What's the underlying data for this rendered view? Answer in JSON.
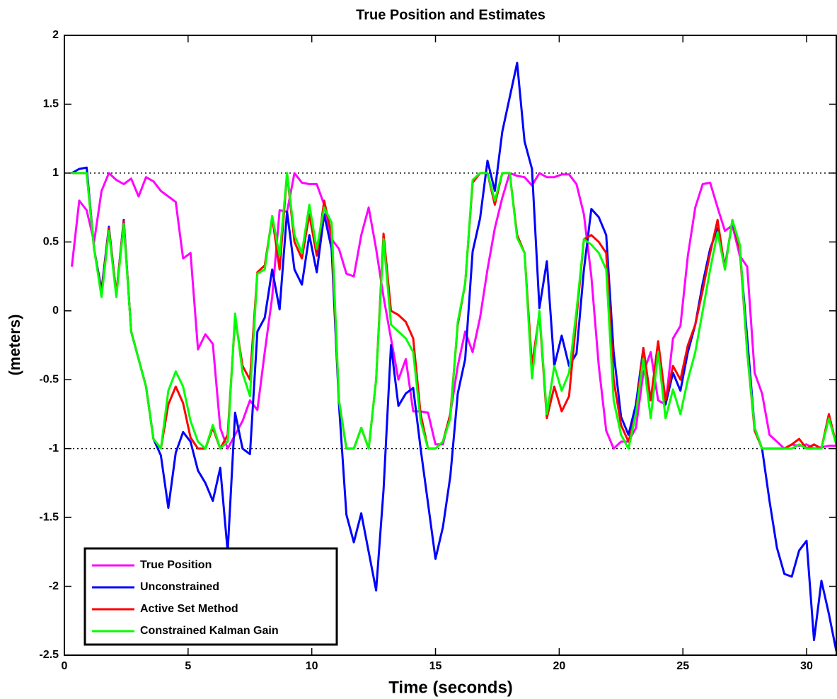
{
  "chart_data": {
    "type": "line",
    "title": "True Position and Estimates",
    "xlabel": "Time (seconds)",
    "ylabel": "(meters)",
    "x": [
      0.3,
      0.6,
      0.9,
      1.2,
      1.5,
      1.8,
      2.1,
      2.4,
      2.7,
      3,
      3.3,
      3.6,
      3.9,
      4.2,
      4.5,
      4.8,
      5.1,
      5.4,
      5.7,
      6,
      6.3,
      6.6,
      6.9,
      7.2,
      7.5,
      7.8,
      8.1,
      8.4,
      8.7,
      9,
      9.3,
      9.6,
      9.9,
      10.2,
      10.5,
      10.8,
      11.1,
      11.4,
      11.7,
      12,
      12.3,
      12.6,
      12.9,
      13.2,
      13.5,
      13.8,
      14.1,
      14.4,
      14.7,
      15,
      15.3,
      15.6,
      15.9,
      16.2,
      16.5,
      16.8,
      17.1,
      17.4,
      17.7,
      18,
      18.3,
      18.6,
      18.9,
      19.2,
      19.5,
      19.8,
      20.1,
      20.4,
      20.7,
      21,
      21.3,
      21.6,
      21.9,
      22.2,
      22.5,
      22.8,
      23.1,
      23.4,
      23.7,
      24,
      24.3,
      24.6,
      24.9,
      25.2,
      25.5,
      25.8,
      26.1,
      26.4,
      26.7,
      27,
      27.3,
      27.6,
      27.9,
      28.2,
      28.5,
      28.8,
      29.1,
      29.4,
      29.7,
      30,
      30.3,
      30.6,
      30.9,
      31.2
    ],
    "series": [
      {
        "name": "True Position",
        "color": "#ff00ff",
        "values": [
          0.32,
          0.8,
          0.73,
          0.5,
          0.87,
          1.0,
          0.95,
          0.92,
          0.96,
          0.83,
          0.97,
          0.94,
          0.87,
          0.83,
          0.79,
          0.38,
          0.42,
          -0.28,
          -0.17,
          -0.24,
          -0.85,
          -1.0,
          -0.9,
          -0.8,
          -0.65,
          -0.72,
          -0.3,
          0.1,
          0.73,
          0.72,
          1.0,
          0.93,
          0.92,
          0.92,
          0.77,
          0.52,
          0.45,
          0.27,
          0.25,
          0.55,
          0.75,
          0.45,
          0.1,
          -0.2,
          -0.5,
          -0.35,
          -0.73,
          -0.73,
          -0.74,
          -0.97,
          -0.97,
          -0.75,
          -0.4,
          -0.15,
          -0.3,
          -0.05,
          0.3,
          0.6,
          0.82,
          1.0,
          0.98,
          0.97,
          0.91,
          1.0,
          0.97,
          0.97,
          0.99,
          0.99,
          0.92,
          0.7,
          0.25,
          -0.4,
          -0.87,
          -1.0,
          -0.95,
          -0.95,
          -0.85,
          -0.45,
          -0.3,
          -0.65,
          -0.68,
          -0.2,
          -0.11,
          0.4,
          0.75,
          0.92,
          0.93,
          0.75,
          0.58,
          0.62,
          0.4,
          0.32,
          -0.45,
          -0.6,
          -0.9,
          -0.95,
          -1.0,
          -0.97,
          -0.98,
          -0.97,
          -1.0,
          -0.99,
          -0.98,
          -0.98
        ]
      },
      {
        "name": "Unconstrained",
        "color": "#0000ff",
        "values": [
          1.0,
          1.03,
          1.04,
          0.45,
          0.15,
          0.61,
          0.12,
          0.66,
          -0.15,
          -0.35,
          -0.55,
          -0.93,
          -1.05,
          -1.43,
          -1.03,
          -0.88,
          -0.95,
          -1.16,
          -1.25,
          -1.38,
          -1.14,
          -1.75,
          -0.74,
          -1.0,
          -1.04,
          -0.15,
          -0.05,
          0.3,
          0.01,
          0.72,
          0.3,
          0.19,
          0.55,
          0.28,
          0.7,
          0.45,
          -0.68,
          -1.48,
          -1.68,
          -1.47,
          -1.75,
          -2.03,
          -1.3,
          -0.25,
          -0.69,
          -0.6,
          -0.56,
          -1.0,
          -1.4,
          -1.8,
          -1.57,
          -1.2,
          -0.6,
          -0.35,
          0.43,
          0.67,
          1.09,
          0.87,
          1.3,
          1.55,
          1.8,
          1.23,
          1.03,
          0.02,
          0.36,
          -0.4,
          -0.18,
          -0.4,
          -0.31,
          0.3,
          0.74,
          0.68,
          0.55,
          -0.3,
          -0.77,
          -0.9,
          -0.68,
          -0.27,
          -0.65,
          -0.3,
          -0.68,
          -0.45,
          -0.58,
          -0.3,
          -0.1,
          0.2,
          0.45,
          0.6,
          0.32,
          0.65,
          0.45,
          -0.2,
          -0.85,
          -1.0,
          -1.38,
          -1.72,
          -1.91,
          -1.93,
          -1.74,
          -1.67,
          -2.39,
          -1.96,
          -2.2,
          -2.47
        ]
      },
      {
        "name": "Active Set Method",
        "color": "#ff0000",
        "values": [
          1,
          1,
          1,
          0.45,
          0.12,
          0.6,
          0.12,
          0.65,
          -0.15,
          -0.35,
          -0.55,
          -0.93,
          -1.0,
          -0.68,
          -0.55,
          -0.67,
          -0.92,
          -1.0,
          -1.0,
          -0.85,
          -1.0,
          -0.9,
          -0.05,
          -0.4,
          -0.5,
          0.28,
          0.33,
          0.68,
          0.3,
          1.0,
          0.5,
          0.38,
          0.7,
          0.4,
          0.8,
          0.55,
          -0.65,
          -1.0,
          -1.0,
          -0.85,
          -1.0,
          -0.5,
          0.56,
          0.0,
          -0.03,
          -0.08,
          -0.2,
          -0.75,
          -1.0,
          -1.0,
          -0.95,
          -0.75,
          -0.1,
          0.2,
          0.93,
          1.0,
          1.0,
          0.77,
          1.0,
          1.0,
          0.55,
          0.42,
          -0.4,
          -0.02,
          -0.78,
          -0.55,
          -0.73,
          -0.62,
          -0.05,
          0.52,
          0.55,
          0.5,
          0.42,
          -0.5,
          -0.83,
          -0.95,
          -0.75,
          -0.27,
          -0.65,
          -0.22,
          -0.65,
          -0.4,
          -0.5,
          -0.25,
          -0.1,
          0.15,
          0.42,
          0.66,
          0.3,
          0.66,
          0.45,
          -0.3,
          -0.87,
          -1.0,
          -1.0,
          -1.0,
          -1.0,
          -0.97,
          -0.93,
          -1.0,
          -0.97,
          -1.0,
          -0.75,
          -0.97
        ]
      },
      {
        "name": "Constrained Kalman Gain",
        "color": "#00ff00",
        "values": [
          1,
          1,
          1,
          0.45,
          0.1,
          0.58,
          0.1,
          0.63,
          -0.15,
          -0.35,
          -0.55,
          -0.93,
          -1.0,
          -0.58,
          -0.44,
          -0.55,
          -0.8,
          -0.95,
          -1.0,
          -0.83,
          -1.0,
          -0.95,
          -0.02,
          -0.45,
          -0.62,
          0.27,
          0.3,
          0.69,
          0.4,
          1.0,
          0.55,
          0.42,
          0.77,
          0.45,
          0.75,
          0.64,
          -0.65,
          -1.0,
          -1.0,
          -0.85,
          -1.0,
          -0.5,
          0.52,
          -0.1,
          -0.15,
          -0.2,
          -0.3,
          -0.8,
          -1.0,
          -1.0,
          -0.95,
          -0.78,
          -0.08,
          0.2,
          0.95,
          1.0,
          1.0,
          0.8,
          1.0,
          1.0,
          0.53,
          0.42,
          -0.49,
          0.0,
          -0.75,
          -0.4,
          -0.58,
          -0.45,
          0.0,
          0.52,
          0.48,
          0.42,
          0.3,
          -0.65,
          -0.9,
          -1.0,
          -0.75,
          -0.35,
          -0.78,
          -0.3,
          -0.78,
          -0.57,
          -0.75,
          -0.5,
          -0.3,
          0.0,
          0.3,
          0.57,
          0.3,
          0.66,
          0.48,
          -0.3,
          -0.85,
          -1.0,
          -1.0,
          -1.0,
          -1.0,
          -1.0,
          -0.97,
          -1.0,
          -1.0,
          -1.0,
          -0.78,
          -0.97
        ]
      }
    ],
    "hlines": [
      -1,
      1
    ],
    "xlim": [
      0,
      31.2
    ],
    "ylim": [
      -2.5,
      2
    ],
    "xticks": [
      0,
      5,
      10,
      15,
      20,
      25,
      30
    ],
    "yticks": [
      -2.5,
      -2,
      -1.5,
      -1,
      -0.5,
      0,
      0.5,
      1,
      1.5,
      2
    ],
    "legend": "lower left"
  }
}
